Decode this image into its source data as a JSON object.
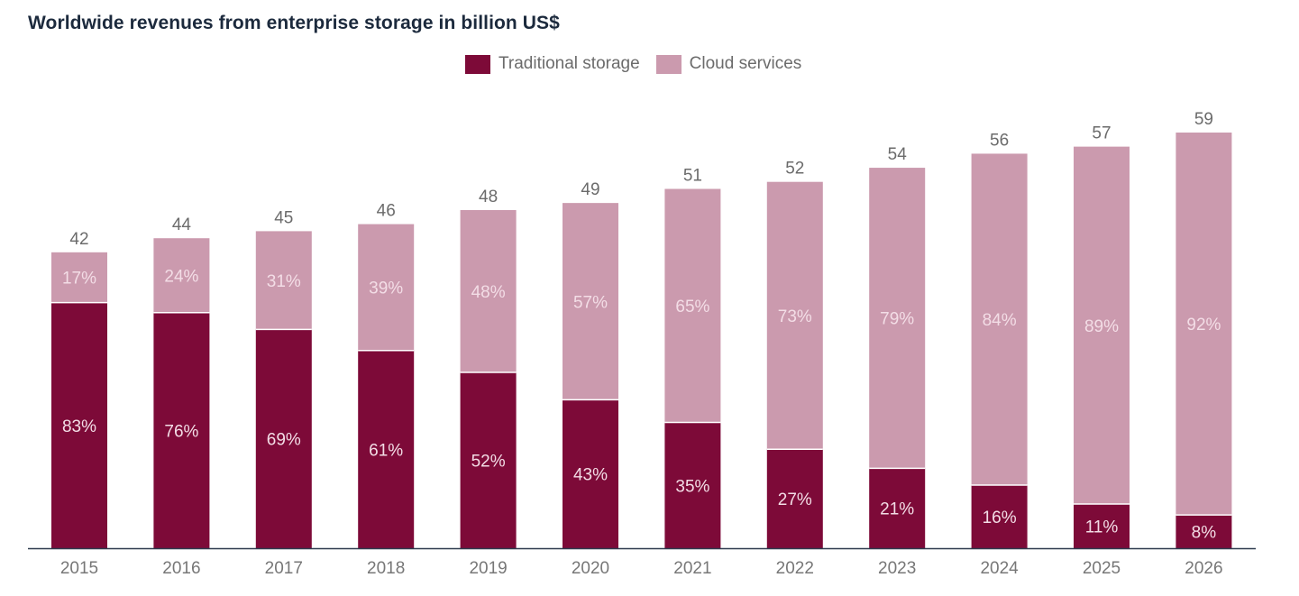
{
  "title": "Worldwide revenues from enterprise storage in billion US$",
  "legend": [
    {
      "label": "Traditional storage",
      "color": "#7d0a38"
    },
    {
      "label": "Cloud services",
      "color": "#cb9aae"
    }
  ],
  "chart_data": {
    "type": "bar",
    "stacked": true,
    "title": "Worldwide revenues from enterprise storage in billion US$",
    "xlabel": "",
    "ylabel": "",
    "categories": [
      "2015",
      "2016",
      "2017",
      "2018",
      "2019",
      "2020",
      "2021",
      "2022",
      "2023",
      "2024",
      "2025",
      "2026"
    ],
    "totals": [
      42,
      44,
      45,
      46,
      48,
      49,
      51,
      52,
      54,
      56,
      57,
      59
    ],
    "series": [
      {
        "name": "Traditional storage",
        "color": "#7d0a38",
        "share_percent": [
          83,
          76,
          69,
          61,
          52,
          43,
          35,
          27,
          21,
          16,
          11,
          8
        ]
      },
      {
        "name": "Cloud services",
        "color": "#cb9aae",
        "share_percent": [
          17,
          24,
          31,
          39,
          48,
          57,
          65,
          73,
          79,
          84,
          89,
          92
        ]
      }
    ],
    "ylim": [
      0,
      59
    ],
    "grid": false,
    "legend_position": "top-center",
    "axis_color": "#2e3b4e"
  }
}
